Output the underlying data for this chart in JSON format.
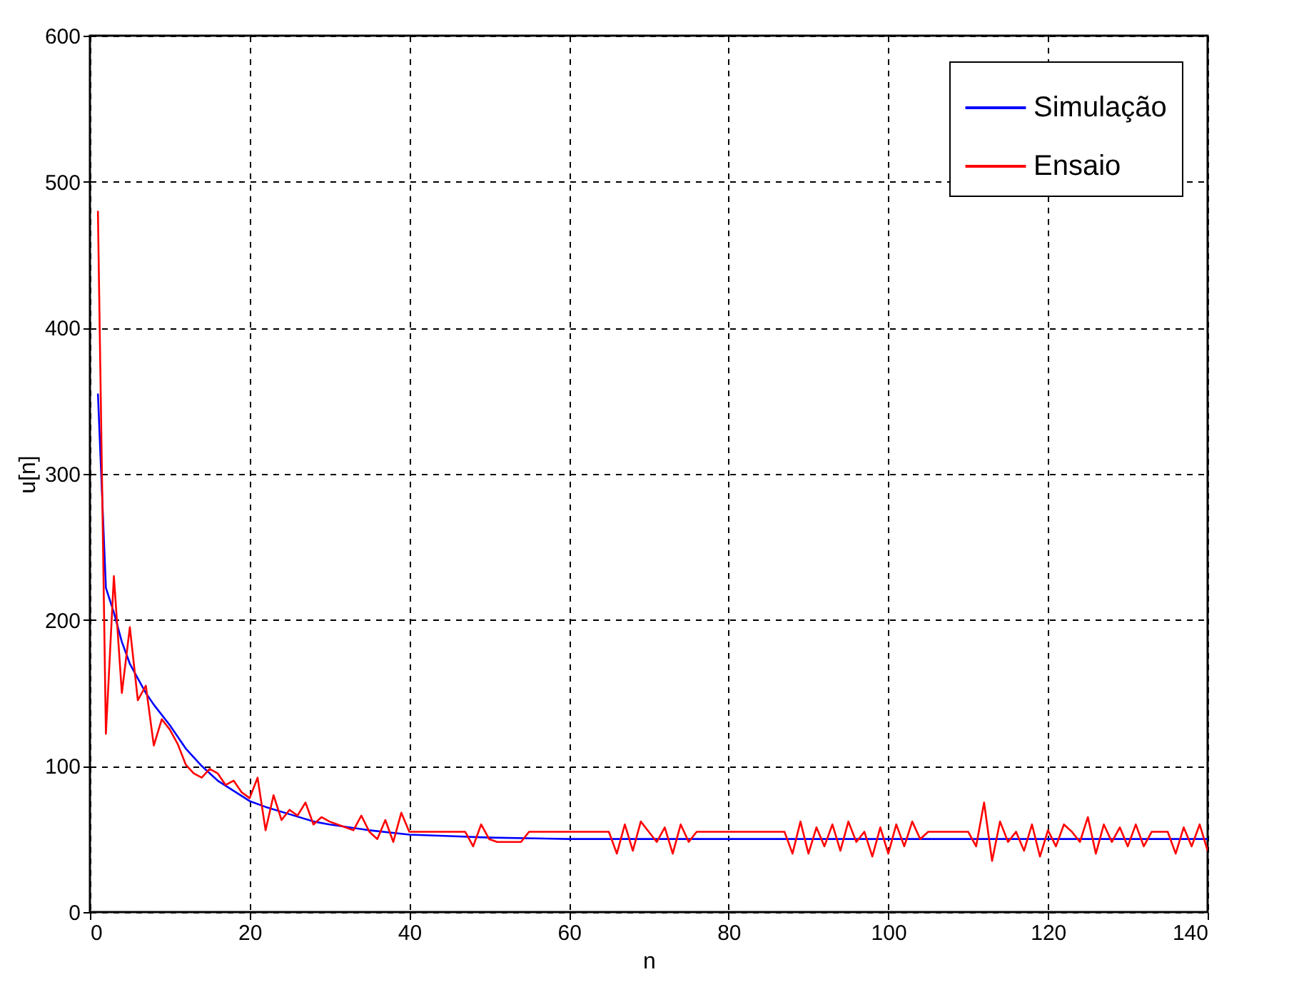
{
  "chart_data": {
    "type": "line",
    "xlabel": "n",
    "ylabel": "u[n]",
    "xlim": [
      0,
      140
    ],
    "ylim": [
      0,
      600
    ],
    "xticks": [
      0,
      20,
      40,
      60,
      80,
      100,
      120,
      140
    ],
    "yticks": [
      0,
      100,
      200,
      300,
      400,
      500,
      600
    ],
    "grid": true,
    "legend": "top right",
    "marker": "none",
    "line_style": "solid",
    "series": [
      {
        "name": "Simulação",
        "color": "#0000ff",
        "x": [
          1,
          2,
          3,
          4,
          5,
          6,
          7,
          8,
          10,
          12,
          14,
          16,
          18,
          20,
          22,
          25,
          28,
          30,
          35,
          40,
          45,
          50,
          60,
          70,
          80,
          100,
          120,
          140
        ],
        "values": [
          355,
          222,
          205,
          185,
          170,
          160,
          150,
          142,
          128,
          112,
          100,
          90,
          83,
          76,
          72,
          67,
          62,
          60,
          56,
          53,
          52,
          51,
          50,
          50,
          50,
          50,
          50,
          50
        ]
      },
      {
        "name": "Ensaio",
        "color": "#ff0000",
        "x": [
          1,
          2,
          3,
          4,
          5,
          6,
          7,
          8,
          9,
          10,
          11,
          12,
          13,
          14,
          15,
          16,
          17,
          18,
          19,
          20,
          21,
          22,
          23,
          24,
          25,
          26,
          27,
          28,
          29,
          30,
          31,
          32,
          33,
          34,
          35,
          36,
          37,
          38,
          39,
          40,
          41,
          42,
          43,
          44,
          45,
          46,
          47,
          48,
          49,
          50,
          51,
          52,
          53,
          54,
          55,
          56,
          57,
          58,
          59,
          60,
          61,
          62,
          63,
          64,
          65,
          66,
          67,
          68,
          69,
          70,
          71,
          72,
          73,
          74,
          75,
          76,
          77,
          78,
          79,
          80,
          81,
          82,
          83,
          84,
          85,
          86,
          87,
          88,
          89,
          90,
          91,
          92,
          93,
          94,
          95,
          96,
          97,
          98,
          99,
          100,
          101,
          102,
          103,
          104,
          105,
          106,
          107,
          108,
          109,
          110,
          111,
          112,
          113,
          114,
          115,
          116,
          117,
          118,
          119,
          120,
          121,
          122,
          123,
          124,
          125,
          126,
          127,
          128,
          129,
          130,
          131,
          132,
          133,
          134,
          135,
          136,
          137,
          138,
          139,
          140
        ],
        "values": [
          480,
          122,
          230,
          150,
          195,
          145,
          155,
          114,
          132,
          125,
          115,
          101,
          95,
          92,
          98,
          95,
          87,
          90,
          82,
          78,
          92,
          56,
          80,
          63,
          70,
          66,
          75,
          60,
          65,
          62,
          60,
          58,
          56,
          66,
          55,
          50,
          63,
          48,
          68,
          55,
          55,
          55,
          55,
          55,
          55,
          55,
          55,
          45,
          60,
          50,
          48,
          48,
          48,
          48,
          55,
          55,
          55,
          55,
          55,
          55,
          55,
          55,
          55,
          55,
          55,
          40,
          60,
          42,
          62,
          55,
          48,
          58,
          40,
          60,
          48,
          55,
          55,
          55,
          55,
          55,
          55,
          55,
          55,
          55,
          55,
          55,
          55,
          40,
          62,
          40,
          58,
          45,
          60,
          42,
          62,
          48,
          55,
          38,
          58,
          40,
          60,
          45,
          62,
          50,
          55,
          55,
          55,
          55,
          55,
          55,
          45,
          75,
          35,
          62,
          48,
          55,
          42,
          60,
          38,
          56,
          45,
          60,
          55,
          48,
          65,
          40,
          60,
          48,
          58,
          45,
          60,
          45,
          55,
          55,
          55,
          40,
          58,
          45,
          60,
          42
        ]
      }
    ]
  }
}
